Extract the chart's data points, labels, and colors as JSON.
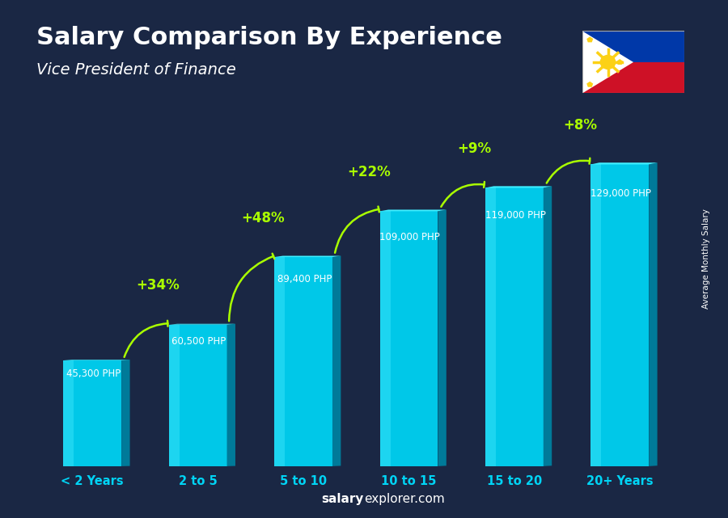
{
  "title": "Salary Comparison By Experience",
  "subtitle": "Vice President of Finance",
  "categories": [
    "< 2 Years",
    "2 to 5",
    "5 to 10",
    "10 to 15",
    "15 to 20",
    "20+ Years"
  ],
  "values": [
    45300,
    60500,
    89400,
    109000,
    119000,
    129000
  ],
  "value_labels": [
    "45,300 PHP",
    "60,500 PHP",
    "89,400 PHP",
    "109,000 PHP",
    "119,000 PHP",
    "129,000 PHP"
  ],
  "pct_labels": [
    "+34%",
    "+48%",
    "+22%",
    "+9%",
    "+8%"
  ],
  "bar_color_top": "#00d4f5",
  "bar_color_mid": "#00aacc",
  "bar_color_bottom": "#007a99",
  "bar_color_face_light": "#40e0f0",
  "bar_color_face": "#00bcd4",
  "bar_color_side": "#007a99",
  "bg_color": "#1a2744",
  "title_color": "#ffffff",
  "subtitle_color": "#ffffff",
  "value_label_color": "#ffffff",
  "pct_color": "#aaff00",
  "xlabel_color": "#00d4f5",
  "footer_text": "salaryexplorer.com",
  "footer_bold": "salary",
  "ylabel_text": "Average Monthly Salary",
  "ylim": [
    0,
    155000
  ]
}
